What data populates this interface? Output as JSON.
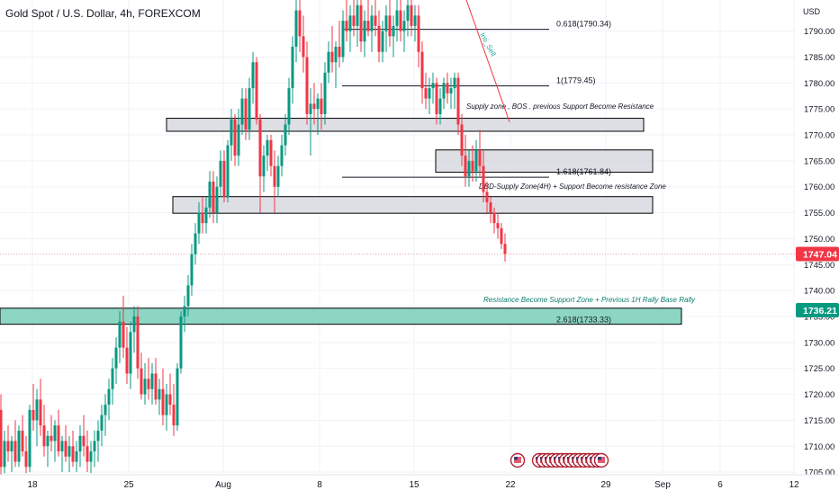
{
  "header": {
    "title": "Gold Spot / U.S. Dollar, 4h, FOREXCOM"
  },
  "chart_data": {
    "type": "candlestick",
    "currency": "USD",
    "ylim": [
      1704.5,
      1796
    ],
    "y_ticks": [
      1705,
      1710,
      1715,
      1720,
      1725,
      1730,
      1735,
      1740,
      1745,
      1750,
      1755,
      1760,
      1765,
      1770,
      1775,
      1780,
      1785,
      1790
    ],
    "y_tick_labels": [
      "1705.00",
      "1710.00",
      "1715.00",
      "1720.00",
      "1725.00",
      "1730.00",
      "1735.00",
      "1740.00",
      "1745.00",
      "1750.00",
      "1755.00",
      "1760.00",
      "1765.00",
      "1770.00",
      "1775.00",
      "1780.00",
      "1785.00",
      "1790.00"
    ],
    "x_index_range": [
      0,
      920
    ],
    "x_labels": [
      {
        "text": "18",
        "i": 36
      },
      {
        "text": "25",
        "i": 143
      },
      {
        "text": "Aug",
        "i": 248
      },
      {
        "text": "8",
        "i": 355
      },
      {
        "text": "15",
        "i": 460
      },
      {
        "text": "22",
        "i": 567
      },
      {
        "text": "29",
        "i": 673
      },
      {
        "text": "Sep",
        "i": 736
      },
      {
        "text": "6",
        "i": 800
      },
      {
        "text": "12",
        "i": 882
      }
    ],
    "price_labels": [
      {
        "text": "1747.04",
        "price": 1747.04,
        "color": "#f23645"
      },
      {
        "text": "1736.21",
        "price": 1736.21,
        "color": "#089981"
      }
    ],
    "zones": [
      {
        "name": "supply-zone",
        "x0": 185,
        "x1": 715,
        "y0": 1770.7,
        "y1": 1773.2,
        "fill": "#d1d4dc",
        "label": "Supply zone , BOS . previous Support Become Resistance",
        "label_x": 518,
        "label_y": 1775.0
      },
      {
        "name": "fib-1618-zone",
        "x0": 484,
        "x1": 725,
        "y0": 1762.8,
        "y1": 1767.1,
        "fill": "#d1d4dc",
        "label": "",
        "label_x": 0,
        "label_y": 0
      },
      {
        "name": "demand-supply-zone",
        "x0": 192,
        "x1": 725,
        "y0": 1754.9,
        "y1": 1758.1,
        "fill": "#d1d4dc",
        "label": "DBD-Supply Zone(4H) + Support Become resistance Zone",
        "label_x": 532,
        "label_y": 1759.6
      },
      {
        "name": "support-zone",
        "x0": 0,
        "x1": 757,
        "y0": 1733.5,
        "y1": 1736.6,
        "fill": "#7fd1bd",
        "label": "Resistance Become Support Zone + Previous 1H Rally Base Rally",
        "label_x": 537,
        "label_y": 1737.8
      }
    ],
    "fib_levels": [
      {
        "label": "0.618(1790.34)",
        "price": 1790.34,
        "x0": 380,
        "x1": 610,
        "label_x": 618
      },
      {
        "label": "1(1779.45)",
        "price": 1779.45,
        "x0": 380,
        "x1": 610,
        "label_x": 618
      },
      {
        "label": "1.618(1761.84)",
        "price": 1761.84,
        "x0": 380,
        "x1": 610,
        "label_x": 618
      },
      {
        "label": "2.618(1733.33)",
        "price": 1733.33,
        "x0": 380,
        "x1": 610,
        "label_x": 618
      }
    ],
    "trendline": {
      "x0": 516,
      "y0": 1797,
      "x1": 566,
      "y1": 1772.5,
      "color": "#f23645",
      "label": "Inti_Sell",
      "label_x": 533,
      "label_y": 1789.4
    },
    "candles": [
      {
        "i": 1,
        "o": 1717,
        "h": 1720,
        "l": 1704,
        "c": 1706
      },
      {
        "i": 5,
        "o": 1706,
        "h": 1713,
        "l": 1704.8,
        "c": 1711
      },
      {
        "i": 9,
        "o": 1711,
        "h": 1714,
        "l": 1707,
        "c": 1709
      },
      {
        "i": 13,
        "o": 1709,
        "h": 1712,
        "l": 1705,
        "c": 1711
      },
      {
        "i": 17,
        "o": 1711,
        "h": 1715,
        "l": 1706,
        "c": 1707
      },
      {
        "i": 21,
        "o": 1707,
        "h": 1714,
        "l": 1706,
        "c": 1713
      },
      {
        "i": 25,
        "o": 1713,
        "h": 1716,
        "l": 1708,
        "c": 1709
      },
      {
        "i": 29,
        "o": 1709,
        "h": 1712,
        "l": 1704.8,
        "c": 1706
      },
      {
        "i": 33,
        "o": 1706,
        "h": 1718,
        "l": 1705,
        "c": 1717
      },
      {
        "i": 37,
        "o": 1717,
        "h": 1722,
        "l": 1713,
        "c": 1715
      },
      {
        "i": 41,
        "o": 1715,
        "h": 1721,
        "l": 1710,
        "c": 1719
      },
      {
        "i": 45,
        "o": 1719,
        "h": 1723,
        "l": 1712,
        "c": 1714
      },
      {
        "i": 49,
        "o": 1714,
        "h": 1718,
        "l": 1708,
        "c": 1710
      },
      {
        "i": 53,
        "o": 1710,
        "h": 1713,
        "l": 1706,
        "c": 1712
      },
      {
        "i": 57,
        "o": 1712,
        "h": 1716,
        "l": 1709,
        "c": 1711
      },
      {
        "i": 61,
        "o": 1711,
        "h": 1715,
        "l": 1707,
        "c": 1714
      },
      {
        "i": 65,
        "o": 1714,
        "h": 1717,
        "l": 1708,
        "c": 1709
      },
      {
        "i": 69,
        "o": 1709,
        "h": 1712,
        "l": 1705,
        "c": 1711
      },
      {
        "i": 73,
        "o": 1711,
        "h": 1714,
        "l": 1707,
        "c": 1708
      },
      {
        "i": 77,
        "o": 1708,
        "h": 1712,
        "l": 1705,
        "c": 1710
      },
      {
        "i": 81,
        "o": 1710,
        "h": 1713,
        "l": 1706,
        "c": 1707
      },
      {
        "i": 85,
        "o": 1707,
        "h": 1711,
        "l": 1705,
        "c": 1709
      },
      {
        "i": 89,
        "o": 1709,
        "h": 1714,
        "l": 1706,
        "c": 1712
      },
      {
        "i": 93,
        "o": 1712,
        "h": 1716,
        "l": 1708,
        "c": 1710
      },
      {
        "i": 97,
        "o": 1710,
        "h": 1713,
        "l": 1705,
        "c": 1707
      },
      {
        "i": 101,
        "o": 1707,
        "h": 1711,
        "l": 1704.8,
        "c": 1709
      },
      {
        "i": 105,
        "o": 1709,
        "h": 1713,
        "l": 1706,
        "c": 1711
      },
      {
        "i": 109,
        "o": 1711,
        "h": 1715,
        "l": 1707,
        "c": 1713
      },
      {
        "i": 113,
        "o": 1713,
        "h": 1718,
        "l": 1710,
        "c": 1716
      },
      {
        "i": 117,
        "o": 1716,
        "h": 1720,
        "l": 1712,
        "c": 1718
      },
      {
        "i": 121,
        "o": 1718,
        "h": 1723,
        "l": 1715,
        "c": 1721
      },
      {
        "i": 125,
        "o": 1721,
        "h": 1727,
        "l": 1718,
        "c": 1725
      },
      {
        "i": 129,
        "o": 1725,
        "h": 1731,
        "l": 1722,
        "c": 1729
      },
      {
        "i": 133,
        "o": 1729,
        "h": 1736,
        "l": 1726,
        "c": 1734
      },
      {
        "i": 137,
        "o": 1734,
        "h": 1739,
        "l": 1727,
        "c": 1729
      },
      {
        "i": 141,
        "o": 1729,
        "h": 1733,
        "l": 1722,
        "c": 1724
      },
      {
        "i": 145,
        "o": 1724,
        "h": 1734,
        "l": 1721,
        "c": 1732
      },
      {
        "i": 149,
        "o": 1732,
        "h": 1737,
        "l": 1728,
        "c": 1735
      },
      {
        "i": 153,
        "o": 1735,
        "h": 1737,
        "l": 1723,
        "c": 1725
      },
      {
        "i": 157,
        "o": 1725,
        "h": 1728,
        "l": 1719,
        "c": 1720
      },
      {
        "i": 161,
        "o": 1720,
        "h": 1726,
        "l": 1718,
        "c": 1723
      },
      {
        "i": 165,
        "o": 1723,
        "h": 1727,
        "l": 1719,
        "c": 1721
      },
      {
        "i": 169,
        "o": 1721,
        "h": 1726,
        "l": 1718,
        "c": 1724
      },
      {
        "i": 173,
        "o": 1724,
        "h": 1727,
        "l": 1718,
        "c": 1719
      },
      {
        "i": 177,
        "o": 1719,
        "h": 1723,
        "l": 1716,
        "c": 1721
      },
      {
        "i": 181,
        "o": 1721,
        "h": 1725,
        "l": 1714,
        "c": 1716
      },
      {
        "i": 185,
        "o": 1716,
        "h": 1722,
        "l": 1713,
        "c": 1720
      },
      {
        "i": 189,
        "o": 1720,
        "h": 1724,
        "l": 1716,
        "c": 1718
      },
      {
        "i": 193,
        "o": 1718,
        "h": 1722,
        "l": 1712,
        "c": 1714
      },
      {
        "i": 197,
        "o": 1714,
        "h": 1726,
        "l": 1713,
        "c": 1725
      },
      {
        "i": 201,
        "o": 1725,
        "h": 1736,
        "l": 1724,
        "c": 1735
      },
      {
        "i": 205,
        "o": 1735,
        "h": 1739,
        "l": 1732,
        "c": 1737
      },
      {
        "i": 209,
        "o": 1737,
        "h": 1743,
        "l": 1735,
        "c": 1741
      },
      {
        "i": 213,
        "o": 1741,
        "h": 1749,
        "l": 1739,
        "c": 1747
      },
      {
        "i": 217,
        "o": 1747,
        "h": 1753,
        "l": 1745,
        "c": 1751
      },
      {
        "i": 221,
        "o": 1751,
        "h": 1757,
        "l": 1749,
        "c": 1755
      },
      {
        "i": 225,
        "o": 1755,
        "h": 1758,
        "l": 1751,
        "c": 1753
      },
      {
        "i": 229,
        "o": 1753,
        "h": 1758,
        "l": 1751,
        "c": 1756
      },
      {
        "i": 233,
        "o": 1756,
        "h": 1763,
        "l": 1754,
        "c": 1761
      },
      {
        "i": 237,
        "o": 1761,
        "h": 1763,
        "l": 1753,
        "c": 1755
      },
      {
        "i": 241,
        "o": 1755,
        "h": 1762,
        "l": 1753,
        "c": 1760
      },
      {
        "i": 245,
        "o": 1760,
        "h": 1767,
        "l": 1758,
        "c": 1765
      },
      {
        "i": 249,
        "o": 1765,
        "h": 1767,
        "l": 1757,
        "c": 1758
      },
      {
        "i": 253,
        "o": 1758,
        "h": 1769,
        "l": 1757,
        "c": 1768
      },
      {
        "i": 257,
        "o": 1768,
        "h": 1775,
        "l": 1765,
        "c": 1773
      },
      {
        "i": 261,
        "o": 1773,
        "h": 1774,
        "l": 1764,
        "c": 1766
      },
      {
        "i": 265,
        "o": 1766,
        "h": 1775,
        "l": 1764,
        "c": 1772
      },
      {
        "i": 269,
        "o": 1772,
        "h": 1779,
        "l": 1770,
        "c": 1777
      },
      {
        "i": 273,
        "o": 1777,
        "h": 1779,
        "l": 1769,
        "c": 1771
      },
      {
        "i": 277,
        "o": 1771,
        "h": 1781,
        "l": 1769,
        "c": 1779
      },
      {
        "i": 281,
        "o": 1779,
        "h": 1786,
        "l": 1776,
        "c": 1784
      },
      {
        "i": 285,
        "o": 1784,
        "h": 1785,
        "l": 1772,
        "c": 1773
      },
      {
        "i": 289,
        "o": 1773,
        "h": 1774,
        "l": 1755,
        "c": 1762
      },
      {
        "i": 293,
        "o": 1762,
        "h": 1768,
        "l": 1759,
        "c": 1766
      },
      {
        "i": 297,
        "o": 1766,
        "h": 1770,
        "l": 1763,
        "c": 1769
      },
      {
        "i": 301,
        "o": 1769,
        "h": 1770,
        "l": 1762,
        "c": 1764
      },
      {
        "i": 305,
        "o": 1764,
        "h": 1767,
        "l": 1755,
        "c": 1760
      },
      {
        "i": 309,
        "o": 1760,
        "h": 1766,
        "l": 1758,
        "c": 1764
      },
      {
        "i": 313,
        "o": 1764,
        "h": 1770,
        "l": 1762,
        "c": 1768
      },
      {
        "i": 317,
        "o": 1768,
        "h": 1774,
        "l": 1766,
        "c": 1772
      },
      {
        "i": 321,
        "o": 1772,
        "h": 1781,
        "l": 1770,
        "c": 1779
      },
      {
        "i": 325,
        "o": 1779,
        "h": 1789,
        "l": 1776,
        "c": 1787
      },
      {
        "i": 329,
        "o": 1787,
        "h": 1796,
        "l": 1784,
        "c": 1794
      },
      {
        "i": 333,
        "o": 1794,
        "h": 1797,
        "l": 1786,
        "c": 1789
      },
      {
        "i": 337,
        "o": 1789,
        "h": 1793,
        "l": 1782,
        "c": 1785
      },
      {
        "i": 341,
        "o": 1785,
        "h": 1788,
        "l": 1772,
        "c": 1774
      },
      {
        "i": 345,
        "o": 1774,
        "h": 1779,
        "l": 1766,
        "c": 1776
      },
      {
        "i": 349,
        "o": 1776,
        "h": 1780,
        "l": 1772,
        "c": 1775
      },
      {
        "i": 353,
        "o": 1775,
        "h": 1778,
        "l": 1770,
        "c": 1777
      },
      {
        "i": 357,
        "o": 1777,
        "h": 1780,
        "l": 1771,
        "c": 1774
      },
      {
        "i": 361,
        "o": 1774,
        "h": 1784,
        "l": 1772,
        "c": 1782
      },
      {
        "i": 365,
        "o": 1782,
        "h": 1788,
        "l": 1780,
        "c": 1786
      },
      {
        "i": 369,
        "o": 1786,
        "h": 1791,
        "l": 1782,
        "c": 1784
      },
      {
        "i": 373,
        "o": 1784,
        "h": 1788,
        "l": 1779,
        "c": 1787
      },
      {
        "i": 377,
        "o": 1787,
        "h": 1792,
        "l": 1783,
        "c": 1785
      },
      {
        "i": 381,
        "o": 1785,
        "h": 1794,
        "l": 1784,
        "c": 1792
      },
      {
        "i": 385,
        "o": 1792,
        "h": 1796,
        "l": 1788,
        "c": 1790
      },
      {
        "i": 389,
        "o": 1790,
        "h": 1795,
        "l": 1786,
        "c": 1793
      },
      {
        "i": 393,
        "o": 1793,
        "h": 1797,
        "l": 1789,
        "c": 1791
      },
      {
        "i": 397,
        "o": 1791,
        "h": 1797,
        "l": 1787,
        "c": 1795
      },
      {
        "i": 401,
        "o": 1795,
        "h": 1797,
        "l": 1786,
        "c": 1788
      },
      {
        "i": 405,
        "o": 1788,
        "h": 1794,
        "l": 1785,
        "c": 1792
      },
      {
        "i": 409,
        "o": 1792,
        "h": 1797,
        "l": 1789,
        "c": 1790
      },
      {
        "i": 413,
        "o": 1790,
        "h": 1795,
        "l": 1786,
        "c": 1793
      },
      {
        "i": 417,
        "o": 1793,
        "h": 1797,
        "l": 1789,
        "c": 1791
      },
      {
        "i": 421,
        "o": 1791,
        "h": 1794,
        "l": 1784,
        "c": 1786
      },
      {
        "i": 425,
        "o": 1786,
        "h": 1792,
        "l": 1784,
        "c": 1790
      },
      {
        "i": 429,
        "o": 1790,
        "h": 1795,
        "l": 1786,
        "c": 1793
      },
      {
        "i": 433,
        "o": 1793,
        "h": 1796,
        "l": 1787,
        "c": 1789
      },
      {
        "i": 437,
        "o": 1789,
        "h": 1793,
        "l": 1785,
        "c": 1791
      },
      {
        "i": 441,
        "o": 1791,
        "h": 1796,
        "l": 1788,
        "c": 1794
      },
      {
        "i": 445,
        "o": 1794,
        "h": 1797,
        "l": 1788,
        "c": 1790
      },
      {
        "i": 449,
        "o": 1790,
        "h": 1794,
        "l": 1786,
        "c": 1792
      },
      {
        "i": 453,
        "o": 1792,
        "h": 1797,
        "l": 1789,
        "c": 1795
      },
      {
        "i": 457,
        "o": 1795,
        "h": 1797,
        "l": 1789,
        "c": 1791
      },
      {
        "i": 461,
        "o": 1791,
        "h": 1795,
        "l": 1788,
        "c": 1793
      },
      {
        "i": 465,
        "o": 1793,
        "h": 1795,
        "l": 1783,
        "c": 1786
      },
      {
        "i": 469,
        "o": 1786,
        "h": 1788,
        "l": 1776,
        "c": 1779
      },
      {
        "i": 473,
        "o": 1779,
        "h": 1782,
        "l": 1775,
        "c": 1777
      },
      {
        "i": 477,
        "o": 1777,
        "h": 1781,
        "l": 1774,
        "c": 1779
      },
      {
        "i": 481,
        "o": 1779,
        "h": 1782,
        "l": 1776,
        "c": 1780
      },
      {
        "i": 485,
        "o": 1780,
        "h": 1781,
        "l": 1772,
        "c": 1774
      },
      {
        "i": 489,
        "o": 1774,
        "h": 1779,
        "l": 1772,
        "c": 1777
      },
      {
        "i": 493,
        "o": 1777,
        "h": 1781,
        "l": 1775,
        "c": 1780
      },
      {
        "i": 497,
        "o": 1780,
        "h": 1782,
        "l": 1776,
        "c": 1778
      },
      {
        "i": 501,
        "o": 1778,
        "h": 1781,
        "l": 1775,
        "c": 1779
      },
      {
        "i": 505,
        "o": 1779,
        "h": 1782,
        "l": 1775,
        "c": 1781
      },
      {
        "i": 509,
        "o": 1781,
        "h": 1782,
        "l": 1770,
        "c": 1772
      },
      {
        "i": 513,
        "o": 1772,
        "h": 1774,
        "l": 1764,
        "c": 1766
      },
      {
        "i": 517,
        "o": 1766,
        "h": 1770,
        "l": 1760,
        "c": 1762
      },
      {
        "i": 521,
        "o": 1762,
        "h": 1767,
        "l": 1760,
        "c": 1765
      },
      {
        "i": 525,
        "o": 1765,
        "h": 1768,
        "l": 1761,
        "c": 1763
      },
      {
        "i": 529,
        "o": 1763,
        "h": 1769,
        "l": 1761,
        "c": 1767
      },
      {
        "i": 533,
        "o": 1767,
        "h": 1771,
        "l": 1762,
        "c": 1764
      },
      {
        "i": 537,
        "o": 1764,
        "h": 1767,
        "l": 1757,
        "c": 1759
      },
      {
        "i": 541,
        "o": 1759,
        "h": 1761,
        "l": 1755,
        "c": 1757
      },
      {
        "i": 545,
        "o": 1757,
        "h": 1758,
        "l": 1753,
        "c": 1755
      },
      {
        "i": 549,
        "o": 1755,
        "h": 1756,
        "l": 1751,
        "c": 1753
      },
      {
        "i": 553,
        "o": 1753,
        "h": 1755,
        "l": 1750,
        "c": 1752
      },
      {
        "i": 557,
        "o": 1752,
        "h": 1753,
        "l": 1748,
        "c": 1749
      },
      {
        "i": 561,
        "o": 1749,
        "h": 1751,
        "l": 1745.6,
        "c": 1747.04
      }
    ],
    "current_price": 1747.04,
    "event_markers_x": [
      575,
      599,
      604,
      609,
      614,
      619,
      624,
      629,
      634,
      639,
      644,
      649,
      654,
      659,
      664,
      668
    ]
  },
  "colors": {
    "up": "#089981",
    "down": "#f23645",
    "zone_stroke": "#000000",
    "grid": "#f0f3fa",
    "axis_text": "#131722"
  }
}
